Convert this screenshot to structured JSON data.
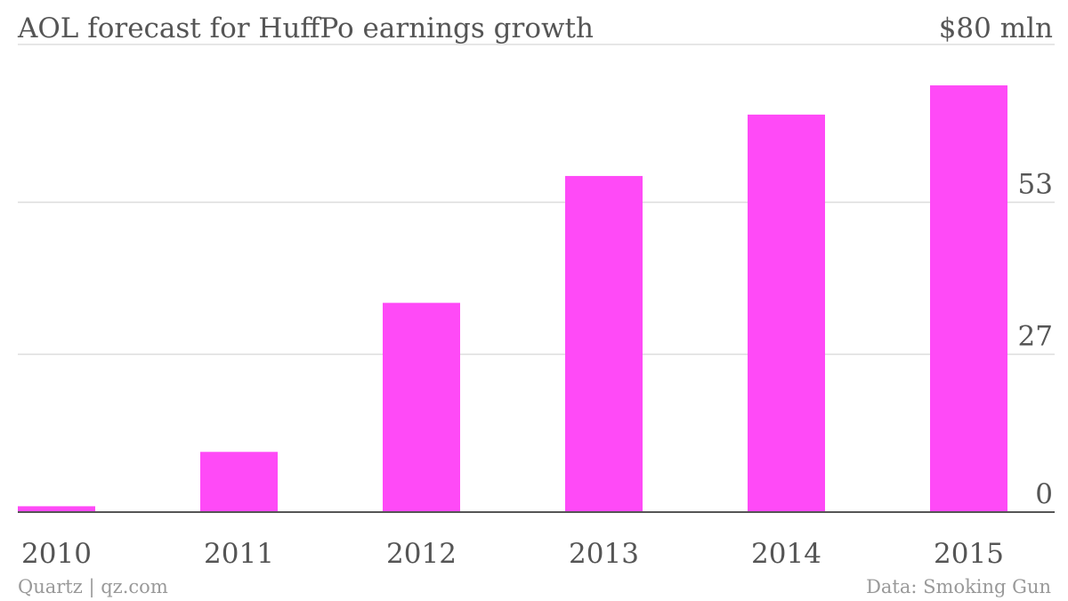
{
  "chart_data": {
    "type": "bar",
    "title": "AOL forecast for HuffPo earnings growth",
    "top_label": "$80 mln",
    "categories": [
      "2010",
      "2011",
      "2012",
      "2013",
      "2014",
      "2015"
    ],
    "values": [
      1,
      10.3,
      35.8,
      57.5,
      68,
      73
    ],
    "ylim": [
      0,
      80
    ],
    "yticks": [
      0,
      27,
      53
    ],
    "ytick_labels": [
      "0",
      "27",
      "53"
    ],
    "grid": true,
    "bar_color": "#ff4af7",
    "source_left": "Quartz | qz.com",
    "source_right": "Data: Smoking Gun"
  }
}
